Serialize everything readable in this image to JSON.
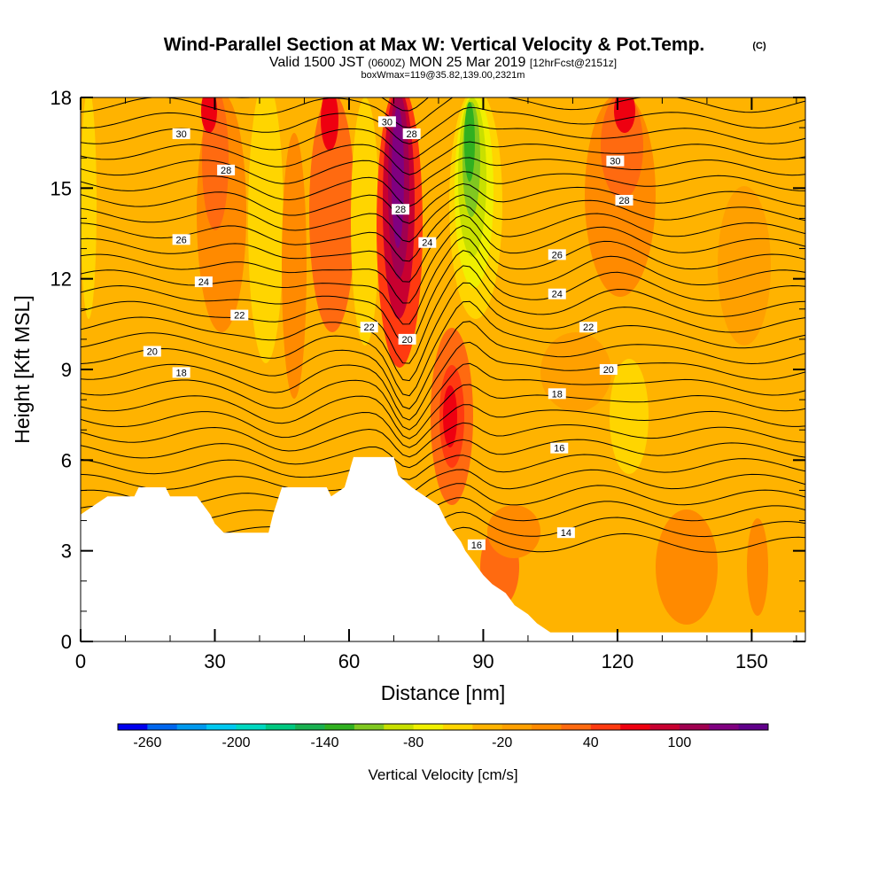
{
  "header": {
    "title": "Wind-Parallel Section at Max W: Vertical Velocity & Pot.Temp.",
    "copyright": "(C)",
    "valid_prefix": "Valid 1500 JST",
    "valid_utc": "(0600Z)",
    "valid_date": "MON 25 Mar 2019",
    "forecast": "[12hrFcst@2151z]",
    "boxinfo": "boxWmax=119@35.82,139.00,2321m"
  },
  "chart_data": {
    "type": "heatmap",
    "xlabel": "Distance [nm]",
    "ylabel": "Height [Kft MSL]",
    "xlim": [
      0,
      162
    ],
    "ylim": [
      0,
      18
    ],
    "xticks": [
      0,
      30,
      60,
      90,
      120,
      150
    ],
    "yticks": [
      0,
      3,
      6,
      9,
      12,
      15,
      18
    ],
    "colorbar": {
      "label": "Vertical Velocity [cm/s]",
      "ticks": [
        "-260",
        "-200",
        "-140",
        "-80",
        "-20",
        "40",
        "100"
      ],
      "min": -280,
      "step": 20,
      "colors": [
        "#0000ee",
        "#0066ee",
        "#0099ee",
        "#00c8f0",
        "#00d8c0",
        "#00c880",
        "#19b050",
        "#30b020",
        "#80c820",
        "#c8e000",
        "#f0f000",
        "#ffd500",
        "#ffb300",
        "#ffa000",
        "#ff8a00",
        "#ff6a10",
        "#ff3a10",
        "#ee0010",
        "#c80030",
        "#a00050",
        "#800080",
        "#60008a"
      ]
    },
    "terrain": [
      [
        0,
        4.2
      ],
      [
        3,
        4.5
      ],
      [
        6,
        4.8
      ],
      [
        12,
        4.8
      ],
      [
        13,
        5.1
      ],
      [
        19,
        5.1
      ],
      [
        20,
        4.8
      ],
      [
        26,
        4.8
      ],
      [
        29,
        4.2
      ],
      [
        30,
        3.9
      ],
      [
        32,
        3.6
      ],
      [
        42,
        3.6
      ],
      [
        43,
        4.2
      ],
      [
        45,
        5.1
      ],
      [
        55,
        5.1
      ],
      [
        56,
        4.8
      ],
      [
        59,
        5.1
      ],
      [
        61,
        6.1
      ],
      [
        70,
        6.1
      ],
      [
        71,
        5.5
      ],
      [
        74,
        5.1
      ],
      [
        77,
        4.8
      ],
      [
        80,
        4.5
      ],
      [
        82,
        3.9
      ],
      [
        85,
        3.3
      ],
      [
        86,
        3.0
      ],
      [
        88,
        2.6
      ],
      [
        90,
        2.2
      ],
      [
        92,
        1.9
      ],
      [
        95,
        1.6
      ],
      [
        97,
        1.2
      ],
      [
        100,
        0.9
      ],
      [
        102,
        0.6
      ],
      [
        105,
        0.3
      ],
      [
        160,
        0.3
      ]
    ],
    "theta_labels": [
      {
        "text": "30",
        "x": 22.5,
        "y": 16.8
      },
      {
        "text": "28",
        "x": 32.5,
        "y": 15.6
      },
      {
        "text": "26",
        "x": 22.5,
        "y": 13.3
      },
      {
        "text": "24",
        "x": 27.5,
        "y": 11.9
      },
      {
        "text": "22",
        "x": 35.5,
        "y": 10.8
      },
      {
        "text": "20",
        "x": 16.0,
        "y": 9.6
      },
      {
        "text": "18",
        "x": 22.5,
        "y": 8.9
      },
      {
        "text": "30",
        "x": 68.5,
        "y": 17.2
      },
      {
        "text": "28",
        "x": 74.0,
        "y": 16.8
      },
      {
        "text": "28",
        "x": 71.5,
        "y": 14.3
      },
      {
        "text": "24",
        "x": 77.5,
        "y": 13.2
      },
      {
        "text": "22",
        "x": 64.5,
        "y": 10.4
      },
      {
        "text": "20",
        "x": 73.0,
        "y": 10.0
      },
      {
        "text": "26",
        "x": 106.5,
        "y": 12.8
      },
      {
        "text": "24",
        "x": 106.5,
        "y": 11.5
      },
      {
        "text": "22",
        "x": 113.5,
        "y": 10.4
      },
      {
        "text": "20",
        "x": 118.0,
        "y": 9.0
      },
      {
        "text": "18",
        "x": 106.5,
        "y": 8.2
      },
      {
        "text": "16",
        "x": 107.0,
        "y": 6.4
      },
      {
        "text": "14",
        "x": 108.5,
        "y": 3.6
      },
      {
        "text": "16",
        "x": 88.5,
        "y": 3.2
      },
      {
        "text": "30",
        "x": 119.5,
        "y": 15.9
      },
      {
        "text": "28",
        "x": 121.5,
        "y": 14.6
      }
    ]
  }
}
